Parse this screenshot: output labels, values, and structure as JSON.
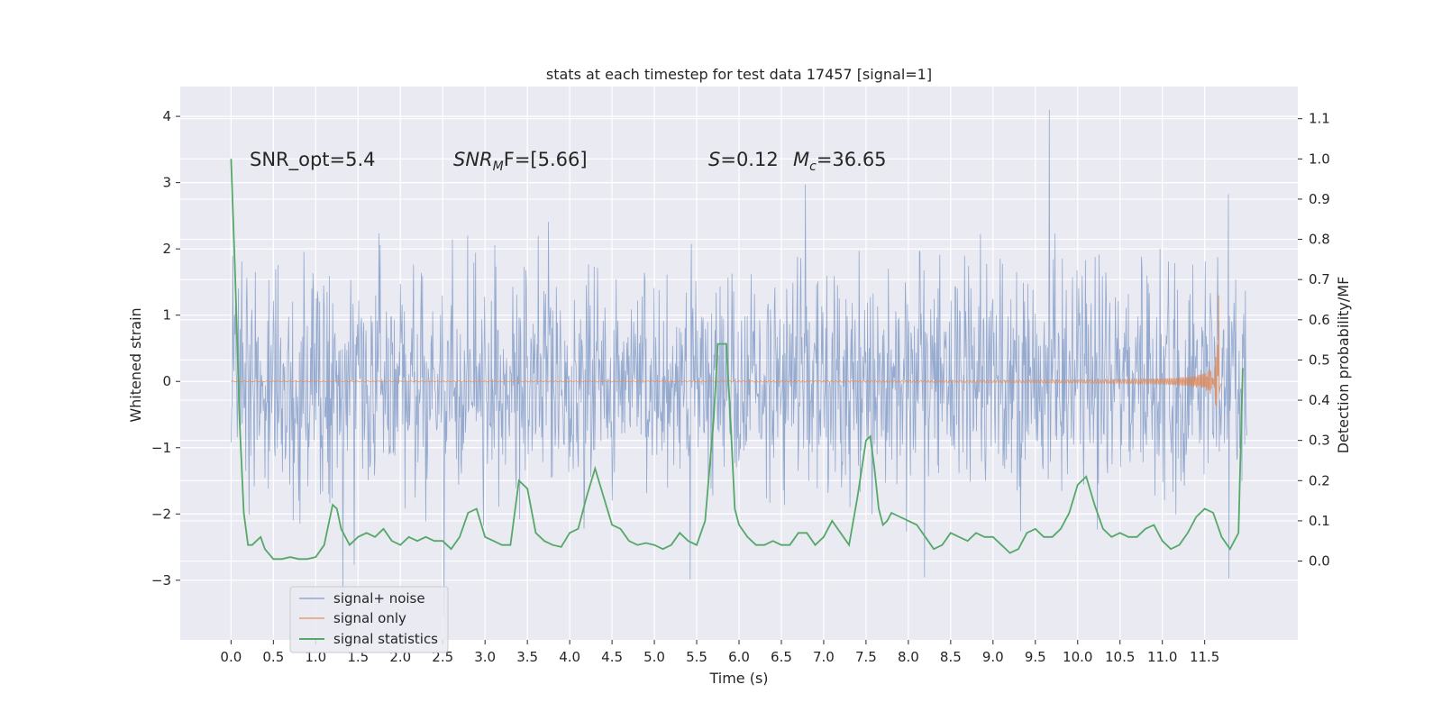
{
  "chart_data": {
    "type": "line",
    "title": "stats at each timestep for test data 17457 [signal=1]",
    "xlabel": "Time (s)",
    "ylabel": "Whitened strain",
    "y2label": "Detection probability/MF",
    "xlim": [
      -0.6,
      12.6
    ],
    "ylim": [
      -3.9,
      4.45
    ],
    "y2lim": [
      -0.196,
      1.18
    ],
    "x_ticks": [
      0.0,
      0.5,
      1.0,
      1.5,
      2.0,
      2.5,
      3.0,
      3.5,
      4.0,
      4.5,
      5.0,
      5.5,
      6.0,
      6.5,
      7.0,
      7.5,
      8.0,
      8.5,
      9.0,
      9.5,
      10.0,
      10.5,
      11.0,
      11.5
    ],
    "x_tick_labels": [
      "0.0",
      "0.5",
      "1.0",
      "1.5",
      "2.0",
      "2.5",
      "3.0",
      "3.5",
      "4.0",
      "4.5",
      "5.0",
      "5.5",
      "6.0",
      "6.5",
      "7.0",
      "7.5",
      "8.0",
      "8.5",
      "9.0",
      "9.5",
      "10.0",
      "10.5",
      "11.0",
      "11.5"
    ],
    "y_ticks": [
      -3,
      -2,
      -1,
      0,
      1,
      2,
      3,
      4
    ],
    "y_tick_labels": [
      "−3",
      "−2",
      "−1",
      "0",
      "1",
      "2",
      "3",
      "4"
    ],
    "y2_ticks": [
      0.0,
      0.1,
      0.2,
      0.3,
      0.4,
      0.5,
      0.6,
      0.7,
      0.8,
      0.9,
      1.0,
      1.1
    ],
    "y2_tick_labels": [
      "0.0",
      "0.1",
      "0.2",
      "0.3",
      "0.4",
      "0.5",
      "0.6",
      "0.7",
      "0.8",
      "0.9",
      "1.0",
      "1.1"
    ],
    "grid": true,
    "legend_position": "lower-left",
    "annotations": {
      "snr_opt": "SNR_opt=5.4",
      "snr_mf_main": "SNR",
      "snr_mf_sub": "M",
      "snr_mf_rest": "F=[5.66]",
      "s_main": "S",
      "s_rest": "=0.12",
      "mc_main": "M",
      "mc_sub": "c",
      "mc_rest": "=36.65"
    },
    "series": [
      {
        "name": "signal+ noise",
        "color": "#4c72b0",
        "axis": "left",
        "x_range": [
          0.0,
          12.0
        ],
        "noise_std": 0.9,
        "max_value": 4.1,
        "min_value": -3.55
      },
      {
        "name": "signal only",
        "color": "#dd8452",
        "axis": "left",
        "x_range": [
          0.0,
          11.7
        ],
        "peak_time": 11.67,
        "peak_amplitude": 1.3
      },
      {
        "name": "signal statistics",
        "color": "#55a868",
        "axis": "right",
        "x": [
          0.0,
          0.05,
          0.1,
          0.15,
          0.2,
          0.25,
          0.3,
          0.35,
          0.4,
          0.5,
          0.6,
          0.7,
          0.8,
          0.9,
          1.0,
          1.1,
          1.15,
          1.2,
          1.25,
          1.3,
          1.4,
          1.5,
          1.6,
          1.7,
          1.8,
          1.9,
          2.0,
          2.1,
          2.2,
          2.3,
          2.4,
          2.5,
          2.6,
          2.7,
          2.8,
          2.9,
          3.0,
          3.1,
          3.2,
          3.3,
          3.4,
          3.5,
          3.6,
          3.7,
          3.8,
          3.9,
          4.0,
          4.1,
          4.2,
          4.3,
          4.4,
          4.5,
          4.6,
          4.7,
          4.8,
          4.9,
          5.0,
          5.1,
          5.2,
          5.3,
          5.4,
          5.5,
          5.6,
          5.7,
          5.75,
          5.8,
          5.85,
          5.9,
          5.95,
          6.0,
          6.1,
          6.2,
          6.3,
          6.4,
          6.5,
          6.6,
          6.7,
          6.8,
          6.9,
          7.0,
          7.1,
          7.2,
          7.3,
          7.4,
          7.5,
          7.55,
          7.6,
          7.65,
          7.7,
          7.75,
          7.8,
          7.9,
          8.0,
          8.1,
          8.2,
          8.3,
          8.4,
          8.5,
          8.6,
          8.7,
          8.8,
          8.9,
          9.0,
          9.1,
          9.2,
          9.3,
          9.4,
          9.5,
          9.6,
          9.7,
          9.8,
          9.9,
          10.0,
          10.1,
          10.2,
          10.3,
          10.4,
          10.5,
          10.6,
          10.7,
          10.8,
          10.9,
          11.0,
          11.1,
          11.2,
          11.3,
          11.4,
          11.5,
          11.6,
          11.7,
          11.8,
          11.9,
          11.95
        ],
        "values": [
          1.0,
          0.7,
          0.35,
          0.12,
          0.04,
          0.04,
          0.05,
          0.06,
          0.03,
          0.005,
          0.005,
          0.01,
          0.005,
          0.005,
          0.01,
          0.04,
          0.09,
          0.14,
          0.13,
          0.08,
          0.04,
          0.06,
          0.07,
          0.06,
          0.08,
          0.05,
          0.04,
          0.06,
          0.05,
          0.06,
          0.05,
          0.05,
          0.03,
          0.06,
          0.12,
          0.13,
          0.06,
          0.05,
          0.04,
          0.04,
          0.2,
          0.18,
          0.07,
          0.05,
          0.04,
          0.035,
          0.07,
          0.08,
          0.16,
          0.23,
          0.16,
          0.09,
          0.08,
          0.05,
          0.04,
          0.045,
          0.04,
          0.03,
          0.04,
          0.07,
          0.05,
          0.04,
          0.1,
          0.35,
          0.54,
          0.54,
          0.54,
          0.35,
          0.13,
          0.09,
          0.06,
          0.04,
          0.04,
          0.05,
          0.04,
          0.04,
          0.07,
          0.07,
          0.04,
          0.06,
          0.1,
          0.07,
          0.04,
          0.16,
          0.3,
          0.31,
          0.23,
          0.13,
          0.09,
          0.1,
          0.12,
          0.11,
          0.1,
          0.09,
          0.06,
          0.03,
          0.04,
          0.07,
          0.06,
          0.05,
          0.07,
          0.06,
          0.06,
          0.04,
          0.02,
          0.03,
          0.07,
          0.08,
          0.06,
          0.06,
          0.08,
          0.12,
          0.19,
          0.21,
          0.14,
          0.08,
          0.06,
          0.07,
          0.06,
          0.06,
          0.08,
          0.09,
          0.05,
          0.03,
          0.04,
          0.07,
          0.11,
          0.13,
          0.12,
          0.06,
          0.03,
          0.07,
          0.48
        ]
      }
    ]
  }
}
